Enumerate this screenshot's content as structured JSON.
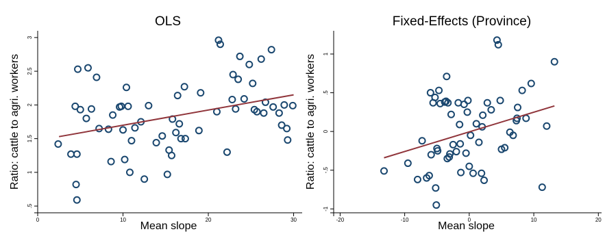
{
  "chart_data": [
    {
      "type": "scatter",
      "title": "OLS",
      "xlabel": "Mean slope",
      "ylabel": "Ratio: cattle to agri. workers",
      "xlim": [
        0,
        31
      ],
      "ylim": [
        0.4,
        3.1
      ],
      "xticks": [
        0,
        10,
        20,
        30
      ],
      "xtick_labels": [
        "0",
        "10",
        "20",
        "30"
      ],
      "yticks": [
        0.5,
        1,
        1.5,
        2,
        2.5,
        3
      ],
      "ytick_labels": [
        ".5",
        "1",
        "1.5",
        "2",
        "2.5",
        "3"
      ],
      "grid": false,
      "colors": {
        "points": "#1a476f",
        "fit": "#90353b"
      },
      "fit_line": {
        "x": [
          2.5,
          30
        ],
        "y": [
          1.53,
          2.15
        ]
      },
      "points": [
        [
          2.4,
          1.42
        ],
        [
          3.9,
          1.27
        ],
        [
          4.4,
          1.98
        ],
        [
          4.7,
          2.53
        ],
        [
          5.0,
          1.93
        ],
        [
          4.6,
          1.27
        ],
        [
          4.5,
          0.82
        ],
        [
          4.6,
          0.59
        ],
        [
          5.7,
          1.8
        ],
        [
          5.9,
          2.55
        ],
        [
          6.3,
          1.94
        ],
        [
          6.9,
          2.41
        ],
        [
          7.2,
          1.65
        ],
        [
          8.3,
          1.64
        ],
        [
          8.6,
          1.16
        ],
        [
          8.8,
          1.85
        ],
        [
          9.6,
          1.97
        ],
        [
          9.8,
          1.98
        ],
        [
          10.0,
          1.63
        ],
        [
          10.2,
          1.19
        ],
        [
          10.4,
          2.26
        ],
        [
          10.6,
          1.98
        ],
        [
          10.8,
          1.0
        ],
        [
          11.0,
          1.47
        ],
        [
          11.4,
          1.66
        ],
        [
          12.1,
          1.75
        ],
        [
          12.5,
          0.9
        ],
        [
          13.0,
          1.99
        ],
        [
          13.9,
          1.44
        ],
        [
          14.6,
          1.54
        ],
        [
          15.2,
          0.97
        ],
        [
          15.4,
          1.33
        ],
        [
          15.7,
          1.25
        ],
        [
          15.8,
          1.79
        ],
        [
          16.2,
          1.59
        ],
        [
          16.4,
          2.14
        ],
        [
          16.6,
          1.72
        ],
        [
          16.8,
          1.5
        ],
        [
          17.3,
          1.5
        ],
        [
          17.2,
          2.27
        ],
        [
          18.9,
          1.62
        ],
        [
          19.1,
          2.18
        ],
        [
          21.0,
          1.9
        ],
        [
          21.2,
          2.96
        ],
        [
          21.4,
          2.9
        ],
        [
          22.2,
          1.3
        ],
        [
          22.8,
          2.08
        ],
        [
          22.9,
          2.45
        ],
        [
          23.2,
          1.94
        ],
        [
          23.5,
          2.38
        ],
        [
          23.7,
          2.72
        ],
        [
          24.2,
          2.09
        ],
        [
          24.8,
          2.6
        ],
        [
          25.2,
          2.32
        ],
        [
          25.4,
          1.93
        ],
        [
          25.7,
          1.9
        ],
        [
          26.2,
          2.68
        ],
        [
          26.5,
          1.88
        ],
        [
          26.7,
          2.04
        ],
        [
          27.4,
          2.82
        ],
        [
          27.6,
          1.97
        ],
        [
          28.3,
          1.88
        ],
        [
          28.6,
          1.7
        ],
        [
          28.9,
          2.0
        ],
        [
          29.2,
          1.65
        ],
        [
          29.3,
          1.48
        ],
        [
          29.9,
          1.99
        ]
      ]
    },
    {
      "type": "scatter",
      "title": "Fixed-Effects (Province)",
      "xlabel": "Mean slope",
      "ylabel": "Ratio: cattle to agri. workers",
      "xlim": [
        -21,
        20.5
      ],
      "ylim": [
        -1.05,
        1.3
      ],
      "xticks": [
        -20,
        -10,
        0,
        10,
        20
      ],
      "xtick_labels": [
        "-20",
        "-10",
        "0",
        "10",
        "20"
      ],
      "yticks": [
        -1,
        -0.5,
        0,
        0.5,
        1
      ],
      "ytick_labels": [
        "-1",
        "-.5",
        "0",
        ".5",
        "1"
      ],
      "grid": false,
      "colors": {
        "points": "#1a476f",
        "fit": "#90353b"
      },
      "fit_line": {
        "x": [
          -13.2,
          13.2
        ],
        "y": [
          -0.34,
          0.33
        ]
      },
      "points": [
        [
          -13.2,
          -0.51
        ],
        [
          -9.5,
          -0.41
        ],
        [
          -8.0,
          -0.62
        ],
        [
          -7.3,
          -0.12
        ],
        [
          -6.6,
          -0.6
        ],
        [
          -6.2,
          -0.57
        ],
        [
          -6.0,
          0.5
        ],
        [
          -5.9,
          -0.3
        ],
        [
          -5.6,
          0.37
        ],
        [
          -5.3,
          0.44
        ],
        [
          -5.2,
          -0.73
        ],
        [
          -5.1,
          -0.95
        ],
        [
          -5.0,
          -0.22
        ],
        [
          -4.9,
          -0.25
        ],
        [
          -4.7,
          0.53
        ],
        [
          -4.5,
          0.36
        ],
        [
          -3.8,
          0.38
        ],
        [
          -3.6,
          0.39
        ],
        [
          -3.5,
          0.71
        ],
        [
          -3.4,
          -0.35
        ],
        [
          -3.3,
          0.37
        ],
        [
          -3.1,
          -0.33
        ],
        [
          -3.0,
          -0.29
        ],
        [
          -2.8,
          0.22
        ],
        [
          -2.5,
          -0.17
        ],
        [
          -2.0,
          -0.26
        ],
        [
          -1.7,
          0.37
        ],
        [
          -1.5,
          0.09
        ],
        [
          -1.4,
          -0.16
        ],
        [
          -1.3,
          -0.53
        ],
        [
          -0.8,
          0.35
        ],
        [
          -0.5,
          -0.28
        ],
        [
          -0.3,
          0.25
        ],
        [
          -0.2,
          0.4
        ],
        [
          0.0,
          -0.45
        ],
        [
          0.2,
          -0.05
        ],
        [
          0.6,
          -0.54
        ],
        [
          1.1,
          0.1
        ],
        [
          1.5,
          -0.14
        ],
        [
          1.9,
          -0.54
        ],
        [
          2.0,
          0.06
        ],
        [
          2.1,
          0.21
        ],
        [
          2.3,
          -0.63
        ],
        [
          2.8,
          0.37
        ],
        [
          3.4,
          0.28
        ],
        [
          4.3,
          1.18
        ],
        [
          4.5,
          1.12
        ],
        [
          4.8,
          0.4
        ],
        [
          5.0,
          -0.23
        ],
        [
          5.5,
          -0.21
        ],
        [
          6.3,
          -0.01
        ],
        [
          6.8,
          -0.05
        ],
        [
          7.3,
          0.14
        ],
        [
          7.4,
          0.17
        ],
        [
          7.5,
          0.31
        ],
        [
          8.2,
          0.53
        ],
        [
          8.8,
          0.17
        ],
        [
          9.6,
          0.62
        ],
        [
          11.3,
          -0.72
        ],
        [
          12.0,
          0.07
        ],
        [
          13.2,
          0.9
        ]
      ]
    }
  ]
}
